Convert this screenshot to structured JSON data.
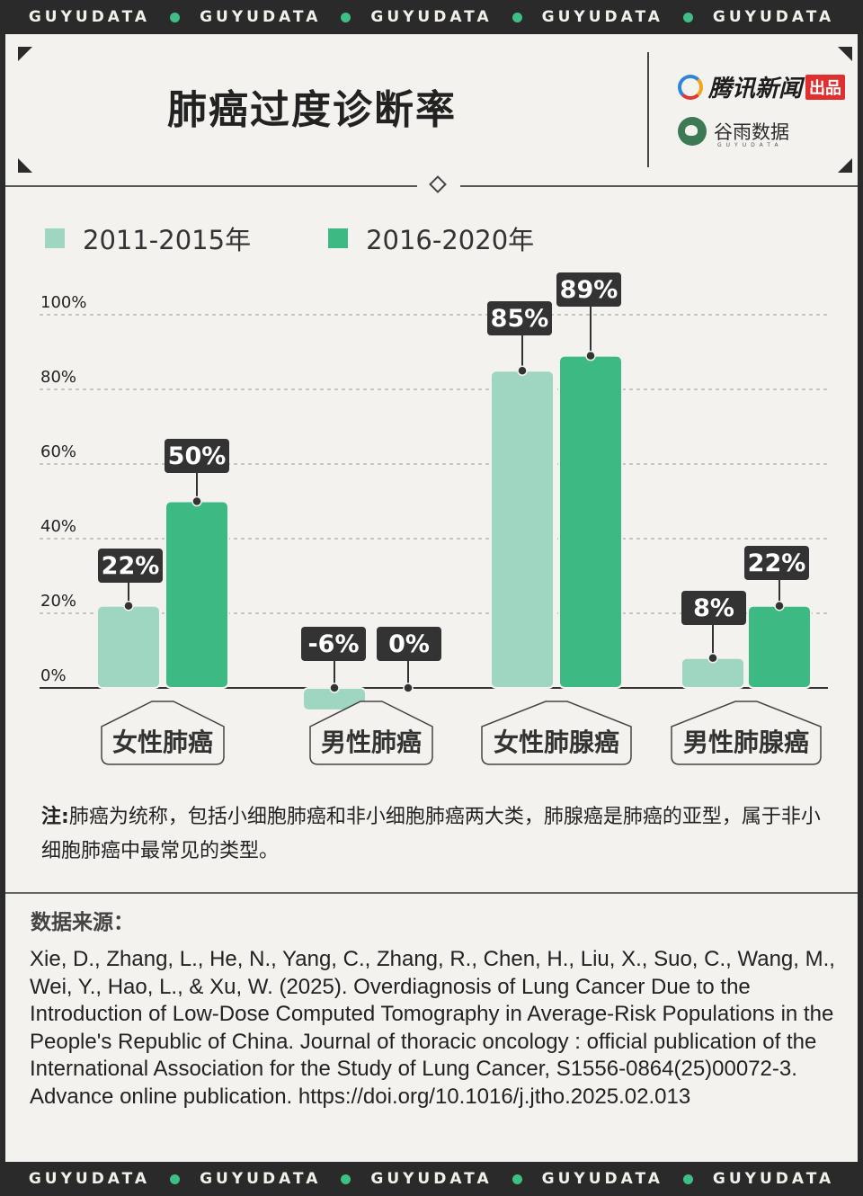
{
  "banner": {
    "text": "GUYUDATA",
    "repeat": 5
  },
  "header": {
    "title": "肺癌过度诊断率",
    "brand_primary": "腾讯新闻",
    "brand_primary_tag": "出品",
    "brand_secondary": "谷雨数据",
    "brand_secondary_sub": "GUYUDATA"
  },
  "legend": [
    {
      "label": "2011-2015年",
      "color": "#9ed6c1"
    },
    {
      "label": "2016-2020年",
      "color": "#3dba84"
    }
  ],
  "chart_data": {
    "type": "bar",
    "categories": [
      "女性肺癌",
      "男性肺癌",
      "女性肺腺癌",
      "男性肺腺癌"
    ],
    "series": [
      {
        "name": "2011-2015年",
        "values": [
          22,
          -6,
          85,
          8
        ],
        "labels": [
          "22%",
          "-6%",
          "85%",
          "8%"
        ]
      },
      {
        "name": "2016-2020年",
        "values": [
          50,
          0,
          89,
          22
        ],
        "labels": [
          "50%",
          "0%",
          "89%",
          "22%"
        ]
      }
    ],
    "yticks": [
      "0%",
      "20%",
      "40%",
      "60%",
      "80%",
      "100%"
    ],
    "ylim": [
      -6,
      100
    ],
    "grid": true,
    "legend_position": "top-left"
  },
  "note": {
    "prefix": "注:",
    "text": "肺癌为统称，包括小细胞肺癌和非小细胞肺癌两大类，肺腺癌是肺癌的亚型，属于非小细胞肺癌中最常见的类型。"
  },
  "source": {
    "title": "数据来源：",
    "text": "Xie, D., Zhang, L., He, N., Yang, C., Zhang, R., Chen, H., Liu, X., Suo, C., Wang, M., Wei, Y., Hao, L., & Xu, W. (2025). Overdiagnosis of Lung Cancer Due to the Introduction of Low-Dose Computed Tomography in Average-Risk Populations in the People's Republic of China. Journal of thoracic oncology : official publication of the International Association for the Study of Lung Cancer, S1556-0864(25)00072-3. Advance online publication. https://doi.org/10.1016/j.jtho.2025.02.013"
  },
  "colors": {
    "light": "#9ed6c1",
    "dark": "#3dba84",
    "label_bg": "#333333",
    "background": "#f4f2ee"
  }
}
